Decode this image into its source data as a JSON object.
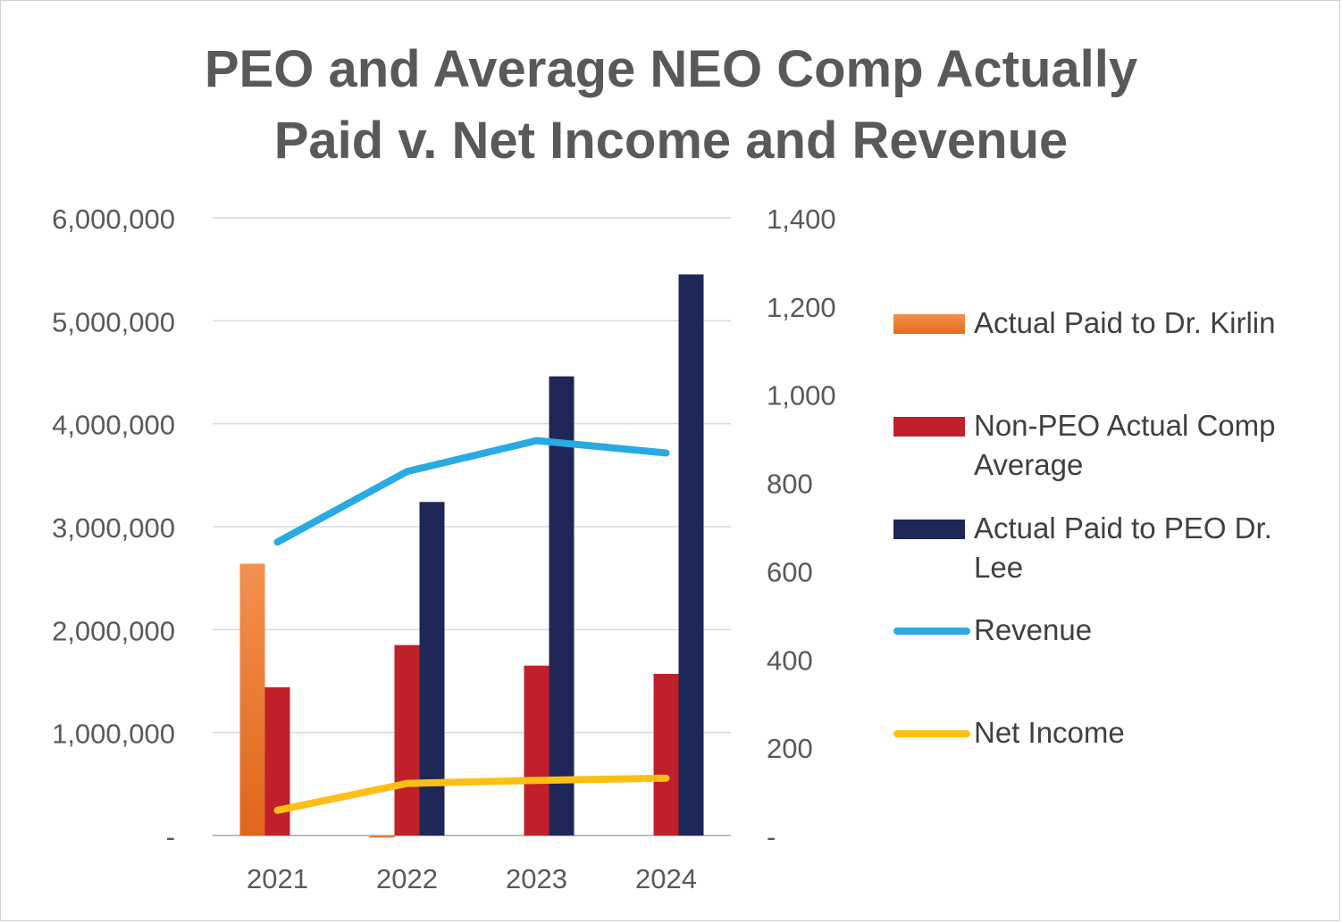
{
  "chart_data": {
    "type": "bar",
    "title_line1": "PEO and Average NEO Comp Actually",
    "title_line2": "Paid v. Net Income and Revenue",
    "categories": [
      "2021",
      "2022",
      "2023",
      "2024"
    ],
    "left_axis": {
      "ylim": [
        0,
        6000000
      ],
      "ticks": [
        "-",
        "1,000,000",
        "2,000,000",
        "3,000,000",
        "4,000,000",
        "5,000,000",
        "6,000,000"
      ]
    },
    "right_axis": {
      "ylim": [
        0,
        1400
      ],
      "ticks": [
        "-",
        "200",
        "400",
        "600",
        "800",
        "1,000",
        "1,200",
        "1,400"
      ]
    },
    "grid": true,
    "legend_position": "right",
    "series": [
      {
        "name": "Actual Paid to Dr. Kirlin",
        "type": "bar",
        "axis": "left",
        "color": "#ED7D31",
        "values": [
          2640000,
          -20000,
          0,
          0
        ]
      },
      {
        "name": "Non-PEO Actual Comp Average",
        "type": "bar",
        "axis": "left",
        "color": "#C0202A",
        "values": [
          1440000,
          1850000,
          1650000,
          1570000
        ]
      },
      {
        "name": "Actual Paid to PEO Dr. Lee",
        "type": "bar",
        "axis": "left",
        "color": "#1F2756",
        "values": [
          0,
          3240000,
          4460000,
          5450000
        ]
      },
      {
        "name": "Revenue",
        "type": "line",
        "axis": "right",
        "color": "#2AAAE2",
        "values": [
          665,
          825,
          895,
          867
        ]
      },
      {
        "name": "Net Income",
        "type": "line",
        "axis": "right",
        "color": "#FDBF16",
        "values": [
          57,
          118,
          125,
          130
        ]
      }
    ]
  }
}
